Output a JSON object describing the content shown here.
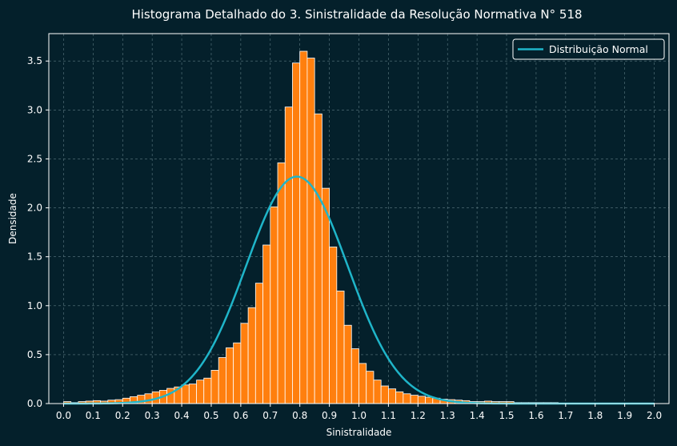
{
  "chart_data": {
    "type": "bar",
    "title": "Histograma Detalhado do 3. Sinistralidade da Resolução Normativa N° 518",
    "xlabel": "Sinistralidade",
    "ylabel": "Densidade",
    "xlim": [
      -0.05,
      2.05
    ],
    "ylim": [
      0,
      3.78
    ],
    "xticks": [
      "0.0",
      "0.1",
      "0.2",
      "0.3",
      "0.4",
      "0.5",
      "0.6",
      "0.7",
      "0.8",
      "0.9",
      "1.0",
      "1.1",
      "1.2",
      "1.3",
      "1.4",
      "1.5",
      "1.6",
      "1.7",
      "1.8",
      "1.9",
      "2.0"
    ],
    "yticks": [
      "0.0",
      "0.5",
      "1.0",
      "1.5",
      "2.0",
      "2.5",
      "3.0",
      "3.5"
    ],
    "grid": true,
    "legend_position": "top-right",
    "colors": {
      "background": "#04202b",
      "bar": "#ff7f0e",
      "bar_edge": "#ffffff",
      "curve": "#1fb5c9",
      "grid": "#5d7a82"
    },
    "bin_width": 0.025,
    "bins": [
      {
        "x": 0.0,
        "h": 0.02
      },
      {
        "x": 0.025,
        "h": 0.01
      },
      {
        "x": 0.05,
        "h": 0.02
      },
      {
        "x": 0.075,
        "h": 0.025
      },
      {
        "x": 0.1,
        "h": 0.03
      },
      {
        "x": 0.125,
        "h": 0.025
      },
      {
        "x": 0.15,
        "h": 0.035
      },
      {
        "x": 0.175,
        "h": 0.04
      },
      {
        "x": 0.2,
        "h": 0.055
      },
      {
        "x": 0.225,
        "h": 0.07
      },
      {
        "x": 0.25,
        "h": 0.085
      },
      {
        "x": 0.275,
        "h": 0.1
      },
      {
        "x": 0.3,
        "h": 0.12
      },
      {
        "x": 0.325,
        "h": 0.135
      },
      {
        "x": 0.35,
        "h": 0.155
      },
      {
        "x": 0.375,
        "h": 0.17
      },
      {
        "x": 0.4,
        "h": 0.19
      },
      {
        "x": 0.425,
        "h": 0.2
      },
      {
        "x": 0.45,
        "h": 0.24
      },
      {
        "x": 0.475,
        "h": 0.26
      },
      {
        "x": 0.5,
        "h": 0.34
      },
      {
        "x": 0.525,
        "h": 0.47
      },
      {
        "x": 0.55,
        "h": 0.57
      },
      {
        "x": 0.575,
        "h": 0.62
      },
      {
        "x": 0.6,
        "h": 0.82
      },
      {
        "x": 0.625,
        "h": 0.98
      },
      {
        "x": 0.65,
        "h": 1.23
      },
      {
        "x": 0.675,
        "h": 1.62
      },
      {
        "x": 0.7,
        "h": 2.01
      },
      {
        "x": 0.725,
        "h": 2.46
      },
      {
        "x": 0.75,
        "h": 3.03
      },
      {
        "x": 0.775,
        "h": 3.48
      },
      {
        "x": 0.8,
        "h": 3.6
      },
      {
        "x": 0.825,
        "h": 3.53
      },
      {
        "x": 0.85,
        "h": 2.96
      },
      {
        "x": 0.875,
        "h": 2.2
      },
      {
        "x": 0.9,
        "h": 1.6
      },
      {
        "x": 0.925,
        "h": 1.15
      },
      {
        "x": 0.95,
        "h": 0.8
      },
      {
        "x": 0.975,
        "h": 0.56
      },
      {
        "x": 1.0,
        "h": 0.41
      },
      {
        "x": 1.025,
        "h": 0.33
      },
      {
        "x": 1.05,
        "h": 0.24
      },
      {
        "x": 1.075,
        "h": 0.18
      },
      {
        "x": 1.1,
        "h": 0.15
      },
      {
        "x": 1.125,
        "h": 0.12
      },
      {
        "x": 1.15,
        "h": 0.1
      },
      {
        "x": 1.175,
        "h": 0.085
      },
      {
        "x": 1.2,
        "h": 0.075
      },
      {
        "x": 1.225,
        "h": 0.065
      },
      {
        "x": 1.25,
        "h": 0.055
      },
      {
        "x": 1.275,
        "h": 0.045
      },
      {
        "x": 1.3,
        "h": 0.04
      },
      {
        "x": 1.325,
        "h": 0.035
      },
      {
        "x": 1.35,
        "h": 0.03
      },
      {
        "x": 1.375,
        "h": 0.02
      },
      {
        "x": 1.4,
        "h": 0.02
      },
      {
        "x": 1.425,
        "h": 0.025
      },
      {
        "x": 1.45,
        "h": 0.02
      },
      {
        "x": 1.475,
        "h": 0.02
      },
      {
        "x": 1.5,
        "h": 0.02
      },
      {
        "x": 1.525,
        "h": 0.01
      },
      {
        "x": 1.55,
        "h": 0.01
      },
      {
        "x": 1.575,
        "h": 0.01
      },
      {
        "x": 1.6,
        "h": 0.01
      },
      {
        "x": 1.625,
        "h": 0.01
      },
      {
        "x": 1.65,
        "h": 0.01
      },
      {
        "x": 1.675,
        "h": 0.005
      },
      {
        "x": 1.7,
        "h": 0.005
      },
      {
        "x": 1.725,
        "h": 0.005
      },
      {
        "x": 1.75,
        "h": 0.005
      },
      {
        "x": 1.775,
        "h": 0.005
      },
      {
        "x": 1.8,
        "h": 0.005
      },
      {
        "x": 1.825,
        "h": 0.005
      },
      {
        "x": 1.85,
        "h": 0.005
      },
      {
        "x": 1.875,
        "h": 0.005
      },
      {
        "x": 1.9,
        "h": 0.005
      },
      {
        "x": 1.925,
        "h": 0.005
      },
      {
        "x": 1.95,
        "h": 0.005
      },
      {
        "x": 1.975,
        "h": 0.005
      }
    ],
    "series": [
      {
        "name": "Distribuição Normal",
        "type": "line",
        "distribution": "normal",
        "mean": 0.79,
        "std": 0.172,
        "x_range": [
          0.0,
          2.0
        ]
      }
    ]
  }
}
